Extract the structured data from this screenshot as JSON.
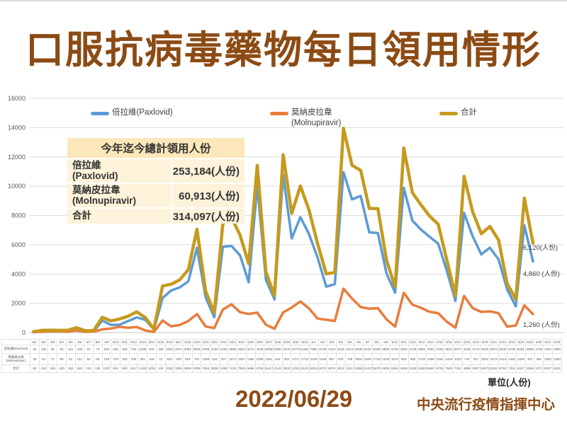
{
  "title": "口服抗病毒藥物每日領用情形",
  "legend": {
    "items": [
      {
        "label": "倍拉維(Paxlovid)",
        "label2": ""
      },
      {
        "label": "莫納皮拉韋",
        "label2": "(Molnupiravir)"
      },
      {
        "label": "合計",
        "label2": ""
      }
    ]
  },
  "summary_box": {
    "title": "今年迄今總計領用人份",
    "rows": [
      {
        "label": "倍拉維",
        "sublabel": "(Paxlovid)",
        "value": "253,184(人份)"
      },
      {
        "label": "莫納皮拉韋",
        "sublabel": "(Molnupiravir)",
        "value": "60,913(人份)"
      },
      {
        "label": "合計",
        "sublabel": "",
        "value": "314,097(人份)"
      }
    ]
  },
  "end_labels": [
    {
      "series": "合計",
      "text": "6,120(人份)"
    },
    {
      "series": "倍拉維(Paxlovid)",
      "text": "4,860 (人份)"
    },
    {
      "series": "莫納皮拉韋(Molnupiravir)",
      "text": "1,260 (人份)"
    }
  ],
  "table": {
    "row_headers": [
      "倍拉維(Paxlovid)",
      "莫納皮拉韋 (Molnupiravir)",
      "合計"
    ]
  },
  "unit_label": "單位(人份)",
  "report_date": "2022/06/29",
  "source": "中央流行疫情指揮中心",
  "colors": {
    "title_brown": "#8C4B14",
    "paxlovid_blue": "#5B9BD5",
    "molnupiravir_orange": "#E87D3C",
    "total_gold": "#C69A1E",
    "box_header_bg": "#FBE7B9",
    "box_body_bg": "#FDF3DA",
    "gridline": "#dedede"
  },
  "chart_data": {
    "type": "line",
    "title": "口服抗病毒藥物每日領用情形",
    "xlabel": "",
    "ylabel": "單位(人份)",
    "ylim": [
      0,
      16000
    ],
    "yticks": [
      0,
      2000,
      4000,
      6000,
      8000,
      10000,
      12000,
      14000,
      16000
    ],
    "grid": true,
    "legend_position": "top",
    "categories": [
      "5/1",
      "5/2",
      "5/3",
      "5/4",
      "5/5",
      "5/6",
      "5/7",
      "5/8",
      "5/9",
      "5/10",
      "5/11",
      "5/12",
      "5/13",
      "5/14",
      "5/15",
      "5/16",
      "5/17",
      "5/18",
      "5/19",
      "5/20",
      "5/21",
      "5/22",
      "5/23",
      "5/24",
      "5/25",
      "5/26",
      "5/27",
      "5/28",
      "5/29",
      "5/30",
      "5/31",
      "6/1",
      "6/2",
      "6/3",
      "6/4",
      "6/5",
      "6/6",
      "6/7",
      "6/8",
      "6/9",
      "6/10",
      "6/11",
      "6/12",
      "6/13",
      "6/14",
      "6/15",
      "6/16",
      "6/17",
      "6/18",
      "6/19",
      "6/20",
      "6/21",
      "6/22",
      "6/23",
      "6/24",
      "6/25",
      "6/26",
      "6/27",
      "6/28"
    ],
    "series": [
      {
        "name": "倍拉維(Paxlovid)",
        "color": "#5B9BD5",
        "values": [
          23,
          100,
          95,
          60,
          111,
          199,
          81,
          70,
          819,
          526,
          538,
          782,
          1038,
          876,
          198,
          2361,
          2874,
          3091,
          3505,
          5795,
          2420,
          1053,
          5860,
          5922,
          5272,
          3435,
          10056,
          3600,
          2270,
          10776,
          6430,
          7882,
          6728,
          5119,
          3138,
          3312,
          10958,
          9102,
          9335,
          6850,
          6794,
          4026,
          2728,
          9881,
          7652,
          7035,
          6544,
          6077,
          4226,
          2170,
          8169,
          6579,
          5340,
          5799,
          5001,
          2959,
          1790,
          7324,
          4860
        ]
      },
      {
        "name": "莫納皮拉韋(Molnupiravir)",
        "color": "#E87D3C",
        "values": [
          39,
          53,
          71,
          90,
          51,
          141,
          50,
          66,
          218,
          278,
          392,
          335,
          381,
          149,
          42,
          821,
          430,
          515,
          791,
          1269,
          416,
          307,
          1571,
          1927,
          1394,
          1269,
          1361,
          542,
          262,
          1377,
          1713,
          2129,
          1646,
          957,
          875,
          799,
          3004,
          2325,
          1743,
          1635,
          1670,
          903,
          405,
          2720,
          1908,
          1691,
          1419,
          1324,
          740,
          337,
          2502,
          1673,
          1413,
          1452,
          1326,
          407,
          481,
          1863,
          1260
        ]
      },
      {
        "name": "合計",
        "color": "#C69A1E",
        "values": [
          62,
          153,
          166,
          150,
          162,
          340,
          131,
          136,
          1037,
          804,
          930,
          1117,
          1419,
          1025,
          240,
          3182,
          3304,
          3606,
          4296,
          7064,
          2836,
          1360,
          7431,
          7849,
          6666,
          4704,
          11417,
          4142,
          2532,
          12153,
          8143,
          10011,
          8374,
          6076,
          4013,
          4111,
          13962,
          11427,
          11078,
          8485,
          8464,
          4929,
          3133,
          12601,
          9560,
          8726,
          7963,
          7401,
          4966,
          2507,
          10671,
          8252,
          6753,
          7251,
          6327,
          3366,
          2271,
          9187,
          6120
        ]
      }
    ]
  }
}
